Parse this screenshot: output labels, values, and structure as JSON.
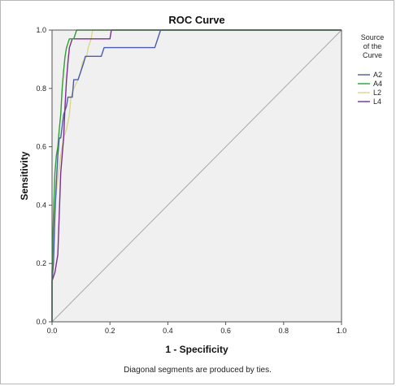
{
  "chart_data": {
    "type": "line",
    "title": "ROC Curve",
    "xlabel": "1 - Specificity",
    "ylabel": "Sensitivity",
    "xlim": [
      0.0,
      1.0
    ],
    "ylim": [
      0.0,
      1.0
    ],
    "x_ticks": [
      "0.0",
      "0.2",
      "0.4",
      "0.6",
      "0.8",
      "1.0"
    ],
    "y_ticks": [
      "0.0",
      "0.2",
      "0.4",
      "0.6",
      "0.8",
      "1.0"
    ],
    "grid": false,
    "legend": {
      "title_lines": [
        "Source",
        "of the",
        "Curve"
      ],
      "placement": "right"
    },
    "footnote": "Diagonal segments are produced by ties.",
    "colors": {
      "plot_background": "#f0f0f0",
      "diagonal": "#a8a8a8"
    },
    "series": [
      {
        "name": "A2",
        "color": "#4a5bb0",
        "points": [
          [
            0,
            0
          ],
          [
            0,
            0.14
          ],
          [
            0.005,
            0.2
          ],
          [
            0.01,
            0.37
          ],
          [
            0.015,
            0.48
          ],
          [
            0.02,
            0.57
          ],
          [
            0.025,
            0.63
          ],
          [
            0.03,
            0.63
          ],
          [
            0.04,
            0.71
          ],
          [
            0.05,
            0.74
          ],
          [
            0.055,
            0.77
          ],
          [
            0.07,
            0.77
          ],
          [
            0.075,
            0.83
          ],
          [
            0.09,
            0.83
          ],
          [
            0.1,
            0.86
          ],
          [
            0.11,
            0.89
          ],
          [
            0.115,
            0.91
          ],
          [
            0.17,
            0.91
          ],
          [
            0.18,
            0.94
          ],
          [
            0.355,
            0.94
          ],
          [
            0.365,
            0.97
          ],
          [
            0.375,
            1.0
          ],
          [
            1.0,
            1.0
          ]
        ]
      },
      {
        "name": "A4",
        "color": "#2ca02c",
        "points": [
          [
            0,
            0
          ],
          [
            0,
            0.17
          ],
          [
            0.005,
            0.37
          ],
          [
            0.01,
            0.51
          ],
          [
            0.015,
            0.57
          ],
          [
            0.02,
            0.6
          ],
          [
            0.025,
            0.66
          ],
          [
            0.03,
            0.71
          ],
          [
            0.035,
            0.8
          ],
          [
            0.04,
            0.86
          ],
          [
            0.045,
            0.91
          ],
          [
            0.05,
            0.94
          ],
          [
            0.06,
            0.97
          ],
          [
            0.065,
            0.97
          ],
          [
            0.075,
            0.97
          ],
          [
            0.085,
            1.0
          ],
          [
            1.0,
            1.0
          ]
        ]
      },
      {
        "name": "L2",
        "color": "#d8d88a",
        "points": [
          [
            0,
            0
          ],
          [
            0,
            0.17
          ],
          [
            0.005,
            0.29
          ],
          [
            0.01,
            0.4
          ],
          [
            0.02,
            0.49
          ],
          [
            0.03,
            0.57
          ],
          [
            0.04,
            0.63
          ],
          [
            0.05,
            0.66
          ],
          [
            0.06,
            0.71
          ],
          [
            0.065,
            0.77
          ],
          [
            0.075,
            0.8
          ],
          [
            0.09,
            0.83
          ],
          [
            0.1,
            0.86
          ],
          [
            0.105,
            0.89
          ],
          [
            0.12,
            0.91
          ],
          [
            0.125,
            0.94
          ],
          [
            0.135,
            0.97
          ],
          [
            0.14,
            1.0
          ],
          [
            1.0,
            1.0
          ]
        ]
      },
      {
        "name": "L4",
        "color": "#7b2d8e",
        "points": [
          [
            0,
            0
          ],
          [
            0,
            0.14
          ],
          [
            0.01,
            0.17
          ],
          [
            0.02,
            0.23
          ],
          [
            0.025,
            0.37
          ],
          [
            0.03,
            0.51
          ],
          [
            0.035,
            0.57
          ],
          [
            0.04,
            0.63
          ],
          [
            0.045,
            0.74
          ],
          [
            0.05,
            0.83
          ],
          [
            0.055,
            0.89
          ],
          [
            0.06,
            0.94
          ],
          [
            0.07,
            0.97
          ],
          [
            0.2,
            0.97
          ],
          [
            0.205,
            1.0
          ],
          [
            1.0,
            1.0
          ]
        ]
      }
    ]
  }
}
